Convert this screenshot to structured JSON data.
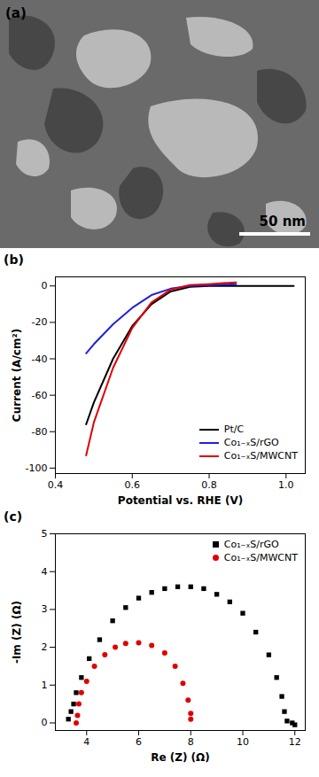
{
  "image": {
    "label": "(a)",
    "scale_bar": "50 nm"
  },
  "chart_data": [
    {
      "type": "line",
      "label": "(b)",
      "x_label": "Potential vs. RHE (V)",
      "y_label": "Current (A/cm²)",
      "xlim": [
        0.4,
        1.05
      ],
      "xticks": [
        0.4,
        0.6,
        0.8,
        {
          "value": 1,
          "label": "1.0"
        }
      ],
      "ylim": [
        -103,
        5
      ],
      "yticks": [
        0,
        -20,
        -40,
        -60,
        -80,
        -100
      ],
      "legend": "bottom-right",
      "series": [
        {
          "name": "Pt/C",
          "color": "#000000",
          "x": [
            0.48,
            0.5,
            0.55,
            0.6,
            0.65,
            0.7,
            0.75,
            0.8,
            0.9,
            1.02
          ],
          "values": [
            -76,
            -64,
            -40,
            -22,
            -10,
            -3,
            -0.5,
            0,
            0,
            0
          ]
        },
        {
          "name": "Co₁₋ₓS/rGO",
          "color": "#2020e0",
          "x": [
            0.48,
            0.5,
            0.55,
            0.6,
            0.65,
            0.7,
            0.75,
            0.8,
            0.87
          ],
          "values": [
            -37,
            -32,
            -21,
            -12,
            -5,
            -1.5,
            0,
            0.5,
            1
          ]
        },
        {
          "name": "Co₁₋ₓS/MWCNT",
          "color": "#e00000",
          "x": [
            0.48,
            0.5,
            0.55,
            0.6,
            0.65,
            0.7,
            0.75,
            0.8,
            0.87
          ],
          "values": [
            -93,
            -75,
            -45,
            -23,
            -9,
            -2,
            0.5,
            1,
            2
          ]
        }
      ]
    },
    {
      "type": "scatter",
      "label": "(c)",
      "x_label": "Re (Z) (Ω)",
      "y_label": "-Im (Z) (Ω)",
      "xlim": [
        2.8,
        12.4
      ],
      "xticks": [
        4,
        6,
        8,
        10,
        12
      ],
      "ylim": [
        -0.2,
        5
      ],
      "yticks": [
        0,
        1,
        2,
        3,
        4,
        5
      ],
      "legend": "top-right",
      "series": [
        {
          "name": "Co₁₋ₓS/rGO",
          "color": "#000000",
          "marker": "square",
          "x": [
            3.3,
            3.4,
            3.5,
            3.6,
            3.8,
            4.1,
            4.5,
            5.0,
            5.5,
            6.0,
            6.5,
            7.0,
            7.5,
            8.0,
            8.5,
            9.0,
            9.5,
            10.0,
            10.5,
            11.0,
            11.3,
            11.5,
            11.6,
            11.7,
            11.9,
            12.0
          ],
          "values": [
            0.1,
            0.3,
            0.5,
            0.8,
            1.2,
            1.7,
            2.2,
            2.7,
            3.05,
            3.3,
            3.45,
            3.55,
            3.6,
            3.6,
            3.55,
            3.4,
            3.2,
            2.9,
            2.4,
            1.8,
            1.2,
            0.7,
            0.3,
            0.05,
            0,
            -0.05
          ]
        },
        {
          "name": "Co₁₋ₓS/MWCNT",
          "color": "#e00000",
          "marker": "circle",
          "x": [
            3.6,
            3.65,
            3.7,
            3.8,
            4.0,
            4.3,
            4.7,
            5.1,
            5.5,
            6.0,
            6.5,
            7.0,
            7.4,
            7.7,
            7.9,
            8.0,
            8.0
          ],
          "values": [
            0.0,
            0.2,
            0.5,
            0.8,
            1.1,
            1.5,
            1.8,
            2.0,
            2.1,
            2.12,
            2.05,
            1.85,
            1.5,
            1.05,
            0.6,
            0.25,
            0.1
          ]
        }
      ]
    }
  ]
}
